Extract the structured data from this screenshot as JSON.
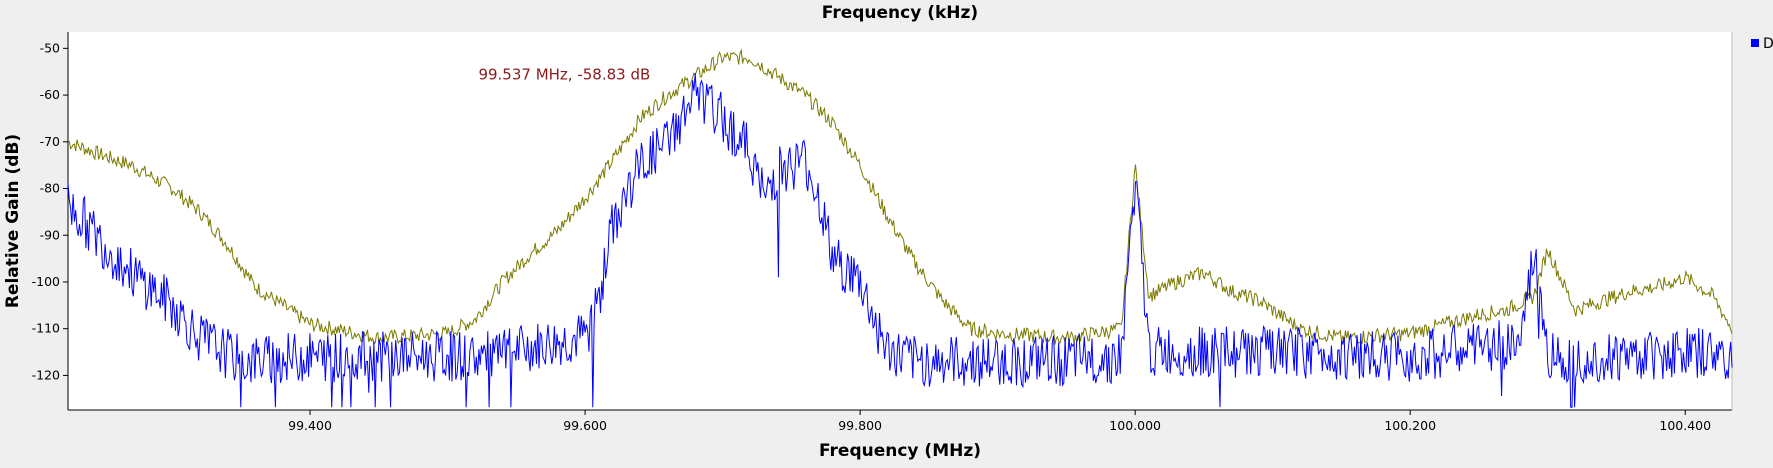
{
  "chart_data": {
    "type": "line",
    "title": "Frequency (kHz)",
    "xlabel": "Frequency (MHz)",
    "ylabel": "Relative Gain (dB)",
    "xlim": [
      99.224,
      100.434
    ],
    "ylim": [
      -127.4,
      -46.5
    ],
    "x_ticks": [
      "99.400",
      "99.600",
      "99.800",
      "100.000",
      "100.200",
      "100.400"
    ],
    "y_ticks": [
      "-50",
      "-60",
      "-70",
      "-80",
      "-90",
      "-100",
      "-110",
      "-120"
    ],
    "grid": false,
    "legend_position": "top-right",
    "legend_entries": [
      "D"
    ],
    "marker_annotation": {
      "text": "99.537 MHz, -58.83 dB",
      "x": 99.537,
      "y": -58.83
    },
    "series": [
      {
        "color": "#7a7a00",
        "role": "max-hold",
        "x": [
          99.224,
          99.25,
          99.27,
          99.3,
          99.32,
          99.34,
          99.36,
          99.4,
          99.45,
          99.5,
          99.52,
          99.54,
          99.56,
          99.58,
          99.6,
          99.62,
          99.64,
          99.66,
          99.68,
          99.7,
          99.72,
          99.74,
          99.76,
          99.78,
          99.8,
          99.82,
          99.84,
          99.86,
          99.88,
          99.9,
          99.95,
          99.99,
          100.0,
          100.01,
          100.03,
          100.05,
          100.07,
          100.09,
          100.12,
          100.15,
          100.2,
          100.25,
          100.27,
          100.29,
          100.3,
          100.32,
          100.34,
          100.36,
          100.38,
          100.4,
          100.42,
          100.434
        ],
        "y": [
          -70,
          -73,
          -75,
          -80,
          -85,
          -92,
          -101,
          -109,
          -112,
          -111,
          -108,
          -100,
          -94,
          -89,
          -82,
          -74,
          -65,
          -60,
          -56,
          -52,
          -52,
          -56,
          -60,
          -66,
          -75,
          -86,
          -96,
          -104,
          -110,
          -111,
          -112,
          -110,
          -75,
          -103,
          -100,
          -98,
          -102,
          -104,
          -110,
          -112,
          -111,
          -107,
          -106,
          -103,
          -93,
          -106,
          -104,
          -102,
          -101,
          -99,
          -103,
          -110
        ]
      },
      {
        "color": "#0000ff",
        "role": "live",
        "x": [
          99.224,
          99.25,
          99.27,
          99.3,
          99.32,
          99.35,
          99.4,
          99.45,
          99.5,
          99.53,
          99.6,
          99.61,
          99.62,
          99.64,
          99.66,
          99.68,
          99.7,
          99.72,
          99.73,
          99.74,
          99.75,
          99.76,
          99.77,
          99.78,
          99.8,
          99.81,
          99.82,
          99.84,
          99.9,
          99.95,
          99.99,
          100.0,
          100.01,
          100.05,
          100.1,
          100.2,
          100.25,
          100.28,
          100.29,
          100.3,
          100.35,
          100.4,
          100.434
        ],
        "y": [
          -83,
          -92,
          -98,
          -105,
          -112,
          -117,
          -116,
          -116,
          -116,
          -116,
          -112,
          -104,
          -88,
          -75,
          -70,
          -60,
          -65,
          -72,
          -82,
          -76,
          -75,
          -74,
          -82,
          -95,
          -100,
          -108,
          -115,
          -117,
          -117,
          -117,
          -116,
          -78,
          -115,
          -115,
          -115,
          -116,
          -114,
          -113,
          -94,
          -116,
          -116,
          -115,
          -116
        ]
      }
    ]
  }
}
